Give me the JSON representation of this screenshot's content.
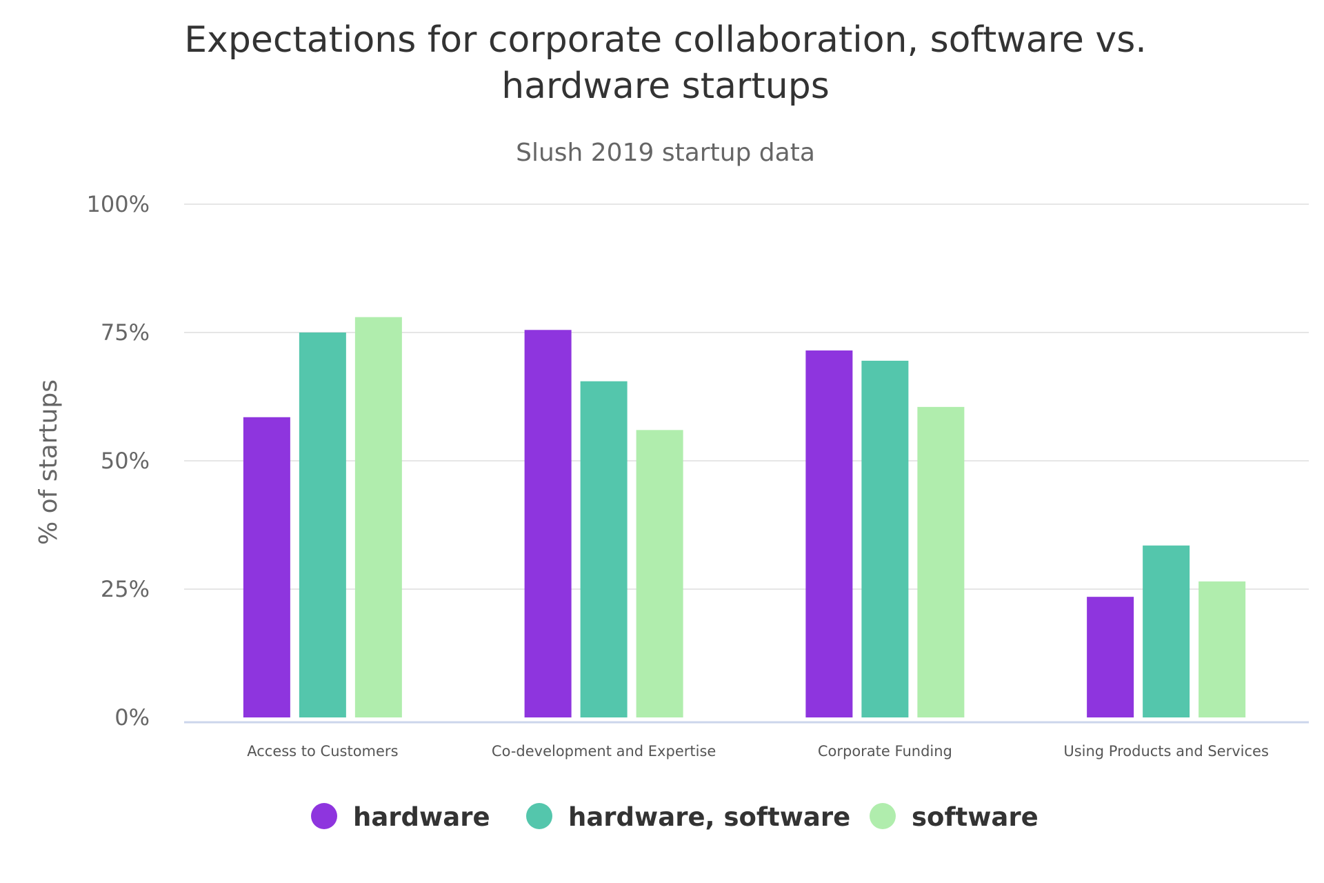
{
  "chart_data": {
    "type": "bar",
    "title": "Expectations for corporate collaboration, software vs. hardware startups",
    "title_lines": [
      "Expectations for corporate collaboration, software vs.",
      "hardware startups"
    ],
    "subtitle": "Slush 2019 startup data",
    "xlabel": "",
    "ylabel": "% of startups",
    "ylim": [
      0,
      100
    ],
    "yticks": [
      0,
      25,
      50,
      75,
      100
    ],
    "ytick_labels": [
      "0%",
      "25%",
      "50%",
      "75%",
      "100%"
    ],
    "grid": true,
    "legend_position": "bottom",
    "categories": [
      "Access to Customers",
      "Co-development and Expertise",
      "Corporate Funding",
      "Using Products and Services"
    ],
    "series": [
      {
        "name": "hardware",
        "color": "#8e35de",
        "values": [
          58.5,
          75.5,
          71.5,
          23.5
        ]
      },
      {
        "name": "hardware, software",
        "color": "#54c6ac",
        "values": [
          75,
          65.5,
          69.5,
          33.5
        ]
      },
      {
        "name": "software",
        "color": "#b0edad",
        "values": [
          78,
          56,
          60.5,
          26.5
        ]
      }
    ]
  }
}
